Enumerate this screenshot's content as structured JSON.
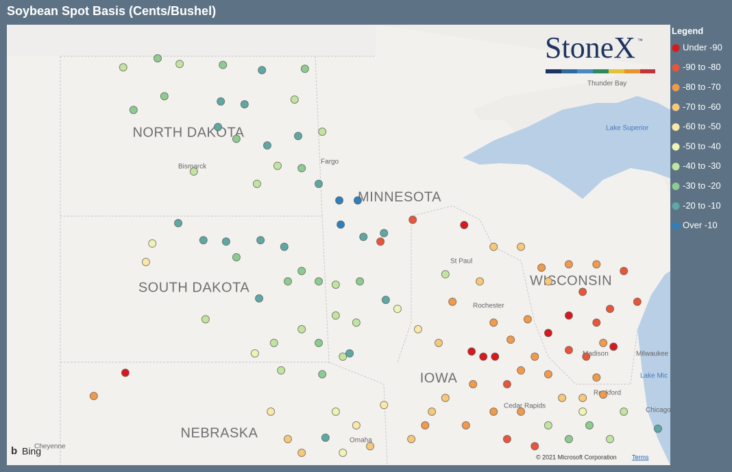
{
  "chart_data": {
    "type": "map",
    "title": "Soybean Spot Basis (Cents/Bushel)",
    "legend_title": "Legend",
    "logo": "StoneX",
    "logo_mark": "™",
    "lonlim": [
      -105.6,
      -86.9
    ],
    "latlim": [
      40.64,
      49.94
    ],
    "map_labels": [
      "NORTH DAKOTA",
      "SOUTH DAKOTA",
      "MINNESOTA",
      "WISCONSIN",
      "IOWA",
      "NEBRASKA"
    ],
    "city_labels": [
      "Bismarck",
      "Fargo",
      "St Paul",
      "Rochester",
      "Thunder Bay",
      "Madison",
      "Milwaukee",
      "Rockford",
      "Chicago",
      "Cedar Rapids",
      "Omaha",
      "Cheyenne"
    ],
    "water_labels": [
      "Lake Superior",
      "Lake Mic"
    ],
    "attribution": "© 2021 Microsoft Corporation",
    "terms": "Terms",
    "provider": "Bing",
    "series": [
      {
        "name": "Under -90",
        "color": "#d7191c",
        "lon": [
          -92.71,
          -102.26,
          -92.5,
          -92.17,
          -91.84,
          -89.76,
          -88.5,
          -90.34
        ],
        "lat": [
          45.71,
          42.59,
          43.04,
          42.93,
          42.93,
          43.8,
          43.14,
          43.43
        ]
      },
      {
        "name": "-90 to -80",
        "color": "#e8553a",
        "lon": [
          -95.07,
          -94.16,
          -91.5,
          -90.72,
          -88.21,
          -89.37,
          -87.83,
          -88.6,
          -88.98,
          -89.76,
          -89.27,
          -91.5
        ],
        "lat": [
          45.36,
          45.82,
          41.19,
          41.04,
          44.74,
          44.3,
          44.09,
          43.94,
          43.65,
          43.07,
          42.93,
          42.35
        ]
      },
      {
        "name": "-80 to -70",
        "color": "#f29a4a",
        "lon": [
          -103.15,
          -93.04,
          -91.88,
          -91.4,
          -92.46,
          -93.81,
          -92.66,
          -91.88,
          -91.11,
          -90.53,
          -89.76,
          -88.98,
          -88.79,
          -90.34,
          -88.98,
          -88.79,
          -90.92,
          -90.72,
          -91.11
        ],
        "lat": [
          42.1,
          44.09,
          43.65,
          43.29,
          42.35,
          41.48,
          41.48,
          41.77,
          41.77,
          44.81,
          44.88,
          44.88,
          43.22,
          42.56,
          42.49,
          42.13,
          43.72,
          42.93,
          42.64
        ]
      },
      {
        "name": "-70 to -60",
        "color": "#f7c879",
        "lon": [
          -97.68,
          -97.29,
          -95.36,
          -93.43,
          -92.27,
          -91.88,
          -91.11,
          -93.24,
          -93.62,
          -94.2,
          -90.34,
          -89.37,
          -89.95
        ],
        "lat": [
          41.19,
          40.9,
          41.04,
          43.22,
          44.52,
          45.25,
          45.25,
          42.06,
          41.77,
          41.19,
          44.52,
          42.06,
          42.06
        ]
      },
      {
        "name": "-60 to -50",
        "color": "#fbe8a6",
        "lon": [
          -101.68,
          -98.16,
          -95.75,
          -94.97,
          -94.01
        ],
        "lat": [
          44.93,
          41.77,
          41.48,
          41.91,
          43.51
        ]
      },
      {
        "name": "-50 to -40",
        "color": "#eef4b4",
        "lon": [
          -101.5,
          -98.61,
          -96.33,
          -96.13,
          -94.59,
          -89.37
        ],
        "lat": [
          45.32,
          43.0,
          41.77,
          40.9,
          43.94,
          41.77
        ]
      },
      {
        "name": "-40 to -30",
        "color": "#c3e4a0",
        "lon": [
          -100.73,
          -102.32,
          -97.49,
          -96.71,
          -100.33,
          -97.97,
          -98.55,
          -100.0,
          -96.33,
          -96.33,
          -95.75,
          -97.29,
          -98.07,
          -97.87,
          -96.13,
          -93.24,
          -90.34,
          -88.6,
          -88.21
        ],
        "lat": [
          49.11,
          49.04,
          48.36,
          47.68,
          46.84,
          46.96,
          46.58,
          43.72,
          44.45,
          43.8,
          43.65,
          43.51,
          43.22,
          42.64,
          42.93,
          44.67,
          41.48,
          41.19,
          41.77
        ]
      },
      {
        "name": "-30 to -20",
        "color": "#8dcb90",
        "lon": [
          -101.35,
          -99.51,
          -97.2,
          -101.16,
          -102.03,
          -99.13,
          -97.29,
          -99.13,
          -97.68,
          -97.29,
          -96.81,
          -95.65,
          -96.81,
          -96.71,
          -89.76,
          -89.18
        ],
        "lat": [
          49.23,
          49.09,
          49.01,
          48.43,
          48.14,
          47.53,
          46.91,
          45.03,
          44.52,
          44.74,
          44.52,
          44.52,
          43.22,
          42.56,
          41.19,
          41.48
        ]
      },
      {
        "name": "-20 to -10",
        "color": "#5ea8a4",
        "lon": [
          -98.41,
          -99.57,
          -98.9,
          -99.65,
          -98.26,
          -97.39,
          -96.81,
          -100.77,
          -100.06,
          -99.42,
          -98.45,
          -97.78,
          -95.55,
          -94.97,
          -98.49,
          -94.92,
          -96.62,
          -87.25,
          -95.94
        ],
        "lat": [
          48.98,
          48.32,
          48.26,
          47.78,
          47.39,
          47.59,
          46.58,
          45.75,
          45.39,
          45.36,
          45.39,
          45.25,
          45.46,
          45.54,
          44.16,
          44.13,
          41.22,
          41.41,
          43.0
        ]
      },
      {
        "name": "Over -10",
        "color": "#2f7fbd",
        "lon": [
          -96.23,
          -95.71,
          -96.19
        ],
        "lat": [
          46.23,
          46.23,
          45.72
        ]
      }
    ]
  }
}
